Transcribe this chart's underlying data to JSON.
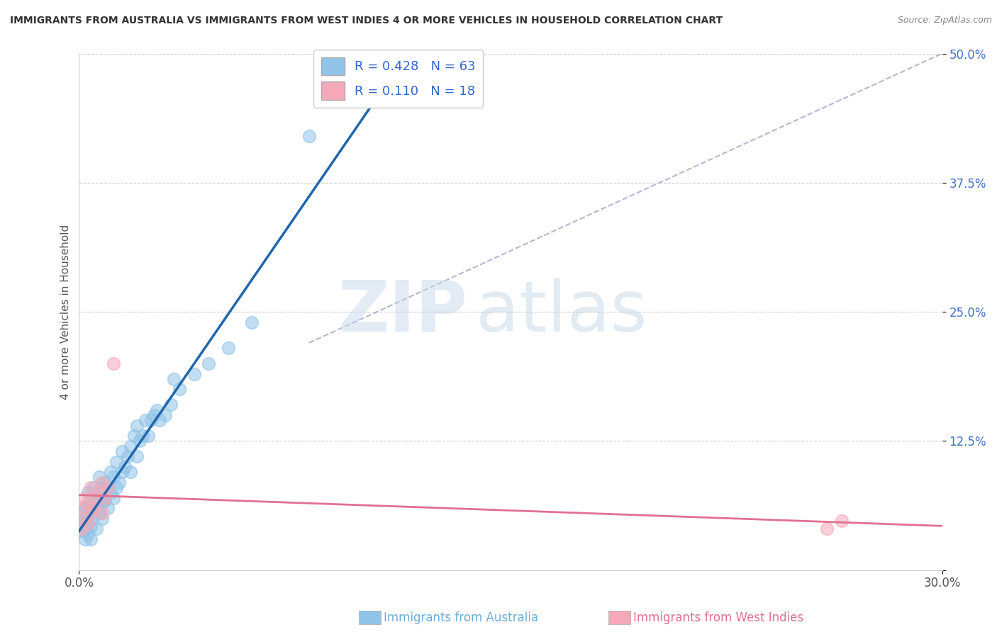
{
  "title": "IMMIGRANTS FROM AUSTRALIA VS IMMIGRANTS FROM WEST INDIES 4 OR MORE VEHICLES IN HOUSEHOLD CORRELATION CHART",
  "source": "Source: ZipAtlas.com",
  "xlabel_blue": "Immigrants from Australia",
  "xlabel_pink": "Immigrants from West Indies",
  "ylabel": "4 or more Vehicles in Household",
  "R_blue": 0.428,
  "N_blue": 63,
  "R_pink": 0.11,
  "N_pink": 18,
  "xlim": [
    0.0,
    0.3
  ],
  "ylim": [
    0.0,
    0.5
  ],
  "blue_color": "#90c4e8",
  "pink_color": "#f4a8b8",
  "blue_line_color": "#2166ac",
  "pink_line_color": "#e07090",
  "watermark_text": "ZIPatlas",
  "blue_scatter_x": [
    0.001,
    0.001,
    0.001,
    0.002,
    0.002,
    0.002,
    0.002,
    0.003,
    0.003,
    0.003,
    0.003,
    0.004,
    0.004,
    0.004,
    0.005,
    0.005,
    0.005,
    0.006,
    0.006,
    0.006,
    0.007,
    0.007,
    0.007,
    0.008,
    0.008,
    0.008,
    0.009,
    0.009,
    0.01,
    0.01,
    0.011,
    0.011,
    0.012,
    0.012,
    0.013,
    0.013,
    0.014,
    0.015,
    0.015,
    0.016,
    0.017,
    0.018,
    0.018,
    0.019,
    0.02,
    0.02,
    0.021,
    0.022,
    0.023,
    0.024,
    0.025,
    0.026,
    0.027,
    0.028,
    0.03,
    0.032,
    0.033,
    0.035,
    0.04,
    0.045,
    0.052,
    0.06,
    0.08
  ],
  "blue_scatter_y": [
    0.038,
    0.045,
    0.055,
    0.03,
    0.04,
    0.05,
    0.06,
    0.035,
    0.048,
    0.062,
    0.075,
    0.03,
    0.042,
    0.058,
    0.052,
    0.065,
    0.08,
    0.04,
    0.06,
    0.075,
    0.055,
    0.07,
    0.09,
    0.05,
    0.065,
    0.08,
    0.068,
    0.085,
    0.06,
    0.08,
    0.075,
    0.095,
    0.07,
    0.09,
    0.08,
    0.105,
    0.085,
    0.095,
    0.115,
    0.1,
    0.11,
    0.095,
    0.12,
    0.13,
    0.11,
    0.14,
    0.125,
    0.13,
    0.145,
    0.13,
    0.145,
    0.15,
    0.155,
    0.145,
    0.15,
    0.16,
    0.185,
    0.175,
    0.19,
    0.2,
    0.215,
    0.24,
    0.42
  ],
  "pink_scatter_x": [
    0.001,
    0.001,
    0.002,
    0.002,
    0.003,
    0.003,
    0.004,
    0.004,
    0.005,
    0.006,
    0.007,
    0.008,
    0.008,
    0.009,
    0.01,
    0.012,
    0.26,
    0.265
  ],
  "pink_scatter_y": [
    0.04,
    0.06,
    0.05,
    0.07,
    0.045,
    0.065,
    0.055,
    0.08,
    0.06,
    0.07,
    0.075,
    0.055,
    0.085,
    0.07,
    0.08,
    0.2,
    0.04,
    0.048
  ],
  "dashed_line": {
    "x0": 0.08,
    "y0": 0.22,
    "x1": 0.3,
    "y1": 0.5
  }
}
